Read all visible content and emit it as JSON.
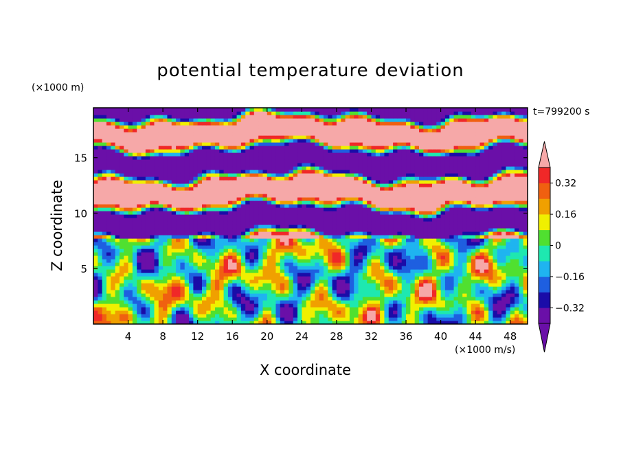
{
  "title": "potential temperature deviation",
  "timestamp": "t=799200 s",
  "chart_data": {
    "type": "heatmap",
    "title": "potential temperature deviation",
    "xlabel": "X coordinate",
    "ylabel": "Z coordinate",
    "x_unit": "(×1000 m/s)",
    "y_unit": "(×1000 m)",
    "xlim": [
      0,
      50
    ],
    "ylim": [
      0,
      19.5
    ],
    "x_ticks": [
      4,
      8,
      12,
      16,
      20,
      24,
      28,
      32,
      36,
      40,
      44,
      48
    ],
    "y_ticks": [
      5,
      10,
      15
    ],
    "grid": false,
    "colorbar": {
      "placement": "right",
      "extend": "both",
      "levels": [
        -0.4,
        -0.32,
        -0.24,
        -0.16,
        -0.08,
        0,
        0.08,
        0.16,
        0.24,
        0.32,
        0.4
      ],
      "colors": [
        "#6a0fa8",
        "#1a0ca8",
        "#1e5fe0",
        "#1fb4f0",
        "#1ee8b0",
        "#50e030",
        "#f0f000",
        "#f0a000",
        "#f06010",
        "#f02828"
      ],
      "under_color": "#6a0fa8",
      "over_color": "#f6a8a8",
      "tick_labels": [
        "0.32",
        "0.16",
        "0",
        "−0.16",
        "−0.32"
      ],
      "tick_values": [
        0.32,
        0.16,
        0,
        -0.16,
        -0.32
      ]
    },
    "field_description_bands": [
      {
        "z_range": [
          7.5,
          19.5
        ],
        "pattern": "alternating layers",
        "colors": [
          "#6a0fa8",
          "#f6a8a8"
        ]
      },
      {
        "z_range": [
          0,
          7.5
        ],
        "pattern": "turbulent mixed layer",
        "colors": [
          "#1fb4f0",
          "#1ee8b0",
          "#50e030",
          "#f0f000",
          "#f0a000",
          "#f02828",
          "#1e5fe0"
        ]
      }
    ]
  }
}
